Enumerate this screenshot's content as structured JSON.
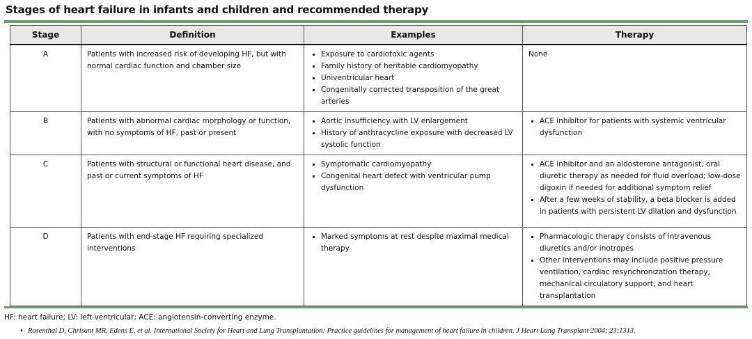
{
  "title": "Stages of heart failure in infants and children and recommended therapy",
  "headers": [
    "Stage",
    "Definition",
    "Examples",
    "Therapy"
  ],
  "rows": [
    {
      "stage": "A",
      "definition": "Patients with increased risk of developing HF, but with normal cardiac function and chamber size",
      "examples": [
        "Exposure to cardiotoxic agents",
        "Family history of heritable cardiomyopathy",
        "Univentricular heart",
        "Congenitally corrected transposition of the great arteries"
      ],
      "therapy_text": "None",
      "therapy": []
    },
    {
      "stage": "B",
      "definition": "Patients with abnormal cardiac morphology or function, with no symptoms of HF, past or present",
      "examples": [
        "Aortic insufficiency with LV enlargement",
        "History of anthracycline exposure with decreased LV systolic function"
      ],
      "therapy": [
        "ACE inhibitor for patients with systemic ventricular dysfunction"
      ]
    },
    {
      "stage": "C",
      "definition": "Patients with structural or functional heart disease, and past or current symptoms of HF",
      "examples": [
        "Symptomatic cardiomyopathy",
        "Congenital heart defect with ventricular pump dysfunction"
      ],
      "therapy": [
        "ACE inhibitor and an aldosterone antagonist; oral diuretic therapy as needed for fluid overload; low-dose digoxin if needed for additional symptom relief",
        "After a few weeks of stability, a beta blocker is added in patients with persistent LV dilation and dysfunction"
      ]
    },
    {
      "stage": "D",
      "definition": "Patients with end-stage HF requiring specialized interventions",
      "examples": [
        "Marked symptoms at rest despite maximal medical therapy"
      ],
      "therapy": [
        "Pharmacologic therapy consists of intravenous diuretics and/or inotropes",
        "Other interventions may include positive pressure ventilation, cardiac resynchronization therapy, mechanical circulatory support, and heart transplantation"
      ]
    }
  ],
  "footnote": "HF: heart failure; LV: left ventricular; ACE: angiotensin-converting enzyme.",
  "reference": "Rosenthal D, Chrisant MR, Edens E, et al. International Society for Heart and Lung Transplantation: Practice guidelines for management of heart failure in children. J Heart Lung Transplant 2004; 23:1313.",
  "colors": {
    "rule": "#6b9a6b",
    "header_bg": "#e8e8e8"
  }
}
